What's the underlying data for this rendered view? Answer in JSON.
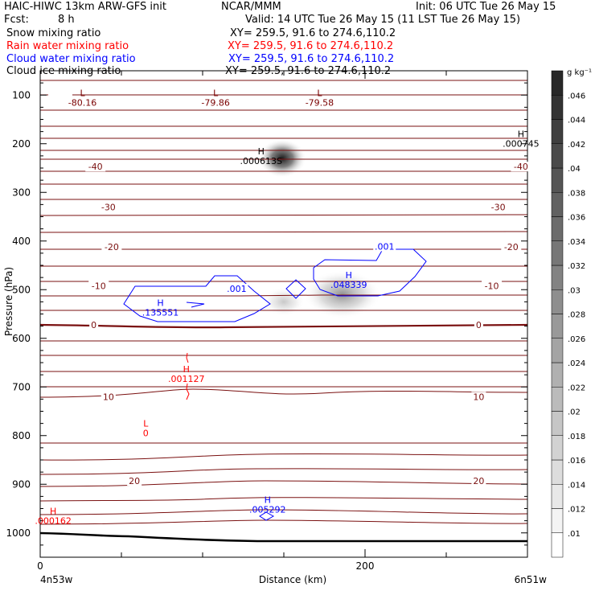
{
  "header": {
    "title_left": "HAIC-HIWC 13km ARW-GFS init",
    "org": "NCAR/MMM",
    "init": "Init: 06 UTC Tue 26 May 15",
    "fcst_label": "Fcst:",
    "fcst_value": "8 h",
    "valid": "Valid: 14 UTC Tue 26 May 15 (11 LST Tue 26 May 15)",
    "fields": [
      {
        "name": "Snow mixing ratio",
        "xy": "XY= 259.5, 91.6 to 274.6,110.2",
        "color": "#000000"
      },
      {
        "name": "Rain water mixing ratio",
        "xy": "XY= 259.5, 91.6 to 274.6,110.2",
        "color": "#ff0000"
      },
      {
        "name": "Cloud water mixing ratio",
        "xy": "XY= 259.5, 91.6 to 274.6,110.2",
        "color": "#0000ff"
      },
      {
        "name": "Cloud ice mixing ratio",
        "xy": "XY= 259.5, 91.6 to 274.6,110.2",
        "color": "#000000"
      }
    ]
  },
  "chart_data": {
    "type": "contour",
    "xlabel": "Distance (km)",
    "ylabel": "Pressure (hPa)",
    "xlim": [
      0,
      300
    ],
    "ylim": [
      1050,
      50
    ],
    "y_ticks": [
      100,
      200,
      300,
      400,
      500,
      600,
      700,
      800,
      900,
      1000
    ],
    "x_tick_labels": [
      {
        "x": 0,
        "label": "0"
      },
      {
        "x": 200,
        "label": "200"
      }
    ],
    "x_minor_ticks": [
      50,
      100,
      150,
      250
    ],
    "endpoints": {
      "left": "4n53w",
      "right": "6n51w"
    },
    "colorbar": {
      "unit": "g kg⁻¹",
      "levels": [
        0.01,
        0.012,
        0.014,
        0.016,
        0.018,
        0.02,
        0.022,
        0.024,
        0.026,
        0.028,
        0.03,
        0.032,
        0.034,
        0.036,
        0.038,
        0.04,
        0.042,
        0.044,
        0.046
      ]
    },
    "isotherm_labels": [
      {
        "x": 34,
        "p": 247,
        "label": "-40"
      },
      {
        "x": 296,
        "p": 247,
        "label": "-40"
      },
      {
        "x": 42,
        "p": 330,
        "label": "-30"
      },
      {
        "x": 282,
        "p": 330,
        "label": "-30"
      },
      {
        "x": 44,
        "p": 412,
        "label": "-20"
      },
      {
        "x": 290,
        "p": 412,
        "label": "-20"
      },
      {
        "x": 36,
        "p": 492,
        "label": "-10"
      },
      {
        "x": 278,
        "p": 492,
        "label": "-10"
      },
      {
        "x": 33,
        "p": 572,
        "label": "0"
      },
      {
        "x": 270,
        "p": 572,
        "label": "0"
      },
      {
        "x": 42,
        "p": 720,
        "label": "10"
      },
      {
        "x": 270,
        "p": 720,
        "label": "10"
      },
      {
        "x": 58,
        "p": 893,
        "label": "20"
      },
      {
        "x": 270,
        "p": 893,
        "label": "20"
      }
    ],
    "extrema": [
      {
        "kind": "L",
        "value": "-80.16",
        "x": 26,
        "p": 105,
        "color": "#7a0000"
      },
      {
        "kind": "L",
        "value": "-79.86",
        "x": 108,
        "p": 105,
        "color": "#7a0000"
      },
      {
        "kind": "L",
        "value": "-79.58",
        "x": 172,
        "p": 105,
        "color": "#7a0000"
      },
      {
        "kind": "H",
        "value": ".000745",
        "x": 296,
        "p": 190,
        "color": "#000000"
      },
      {
        "kind": "H",
        "value": ".000613S",
        "x": 136,
        "p": 225,
        "color": "#000000"
      },
      {
        "kind": "H",
        "value": ".048339",
        "x": 190,
        "p": 480,
        "color": "#0000ff"
      },
      {
        "kind": "H",
        "value": ".135551",
        "x": 74,
        "p": 537,
        "color": "#0000ff"
      },
      {
        "kind": "H",
        "value": ".001127",
        "x": 90,
        "p": 673,
        "color": "#ff0000"
      },
      {
        "kind": "L",
        "value": "0",
        "x": 65,
        "p": 785,
        "color": "#ff0000"
      },
      {
        "kind": "H",
        "value": ".005292",
        "x": 140,
        "p": 942,
        "color": "#0000ff"
      },
      {
        "kind": "H",
        "value": ".000162",
        "x": 8,
        "p": 965,
        "color": "#ff0000"
      }
    ],
    "contour_labels": [
      {
        "x": 121,
        "p": 498,
        "value": ".001",
        "color": "#0000ff"
      },
      {
        "x": 212,
        "p": 411,
        "value": ".001",
        "color": "#0000ff"
      }
    ],
    "snow_maxima": [
      {
        "x": 149,
        "p": 230,
        "value": 0.046
      },
      {
        "x": 186,
        "p": 510,
        "value": 0.03
      },
      {
        "x": 150,
        "p": 525,
        "value": 0.012
      }
    ]
  }
}
